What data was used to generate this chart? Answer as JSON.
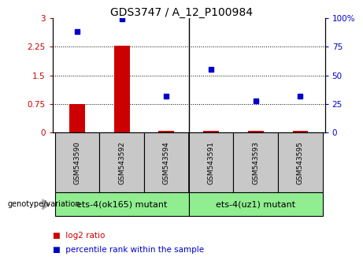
{
  "title": "GDS3747 / A_12_P100984",
  "samples": [
    "GSM543590",
    "GSM543592",
    "GSM543594",
    "GSM543591",
    "GSM543593",
    "GSM543595"
  ],
  "x_positions": [
    0,
    1,
    2,
    3,
    4,
    5
  ],
  "log2_ratio": [
    0.75,
    2.28,
    0.04,
    0.04,
    0.04,
    0.04
  ],
  "percentile_rank": [
    88,
    99,
    32,
    55,
    28,
    32
  ],
  "ylim_left": [
    0,
    3
  ],
  "ylim_right": [
    0,
    100
  ],
  "yticks_left": [
    0,
    0.75,
    1.5,
    2.25,
    3
  ],
  "yticks_right": [
    0,
    25,
    50,
    75,
    100
  ],
  "yticklabels_left": [
    "0",
    "0.75",
    "1.5",
    "2.25",
    "3"
  ],
  "yticklabels_right": [
    "0",
    "25",
    "50",
    "75",
    "100%"
  ],
  "left_tick_color": "#cc0000",
  "right_tick_color": "#0000cc",
  "bar_color": "#cc0000",
  "dot_color": "#0000cc",
  "groups": [
    {
      "label": "ets-4(ok165) mutant",
      "start": 0,
      "end": 2,
      "color": "#90ee90"
    },
    {
      "label": "ets-4(uz1) mutant",
      "start": 3,
      "end": 5,
      "color": "#90ee90"
    }
  ],
  "group_label": "genotype/variation",
  "legend_items": [
    {
      "color": "#cc0000",
      "label": "log2 ratio"
    },
    {
      "color": "#0000cc",
      "label": "percentile rank within the sample"
    }
  ],
  "bg_color": "#ffffff",
  "dotted_line_color": "#000000",
  "sample_box_color": "#c8c8c8",
  "bar_width": 0.35,
  "xlim": [
    -0.55,
    5.55
  ]
}
